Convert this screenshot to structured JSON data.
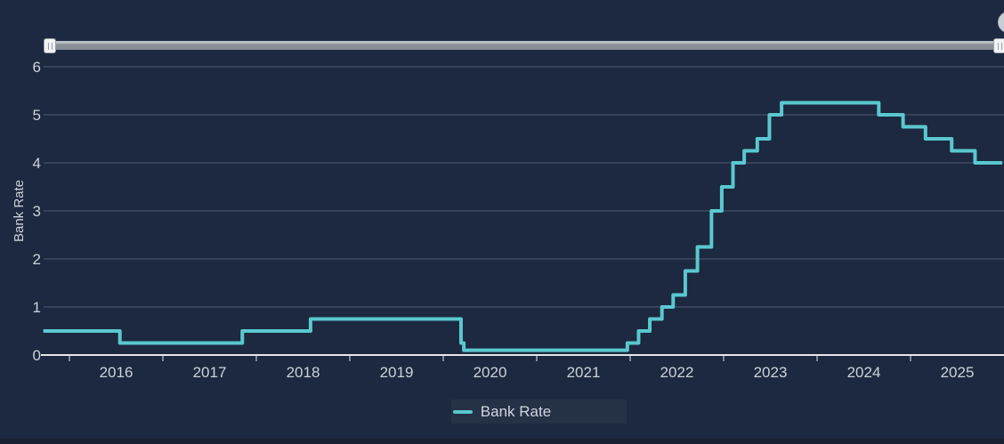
{
  "chart": {
    "background_color": "#1c2940",
    "accent_color": "#5ac8ce",
    "grid_color": "#505b6e",
    "y_axis": {
      "title": "Bank Rate"
    },
    "legend": {
      "label": "Bank Rate"
    },
    "navigator": {
      "range_start_handle": "min",
      "range_end_handle": "max"
    }
  },
  "chart_data": {
    "type": "line",
    "step": "after",
    "series": [
      {
        "name": "Bank Rate",
        "color": "#5ac8ce",
        "points": [
          {
            "year": 2015.72,
            "rate": 0.5
          },
          {
            "year": 2016.54,
            "rate": 0.25
          },
          {
            "year": 2017.85,
            "rate": 0.5
          },
          {
            "year": 2018.58,
            "rate": 0.75
          },
          {
            "year": 2020.19,
            "rate": 0.25
          },
          {
            "year": 2020.22,
            "rate": 0.1
          },
          {
            "year": 2021.97,
            "rate": 0.25
          },
          {
            "year": 2022.09,
            "rate": 0.5
          },
          {
            "year": 2022.21,
            "rate": 0.75
          },
          {
            "year": 2022.34,
            "rate": 1.0
          },
          {
            "year": 2022.46,
            "rate": 1.25
          },
          {
            "year": 2022.59,
            "rate": 1.75
          },
          {
            "year": 2022.72,
            "rate": 2.25
          },
          {
            "year": 2022.87,
            "rate": 3.0
          },
          {
            "year": 2022.98,
            "rate": 3.5
          },
          {
            "year": 2023.1,
            "rate": 4.0
          },
          {
            "year": 2023.22,
            "rate": 4.25
          },
          {
            "year": 2023.36,
            "rate": 4.5
          },
          {
            "year": 2023.49,
            "rate": 5.0
          },
          {
            "year": 2023.62,
            "rate": 5.25
          },
          {
            "year": 2024.66,
            "rate": 5.0
          },
          {
            "year": 2024.92,
            "rate": 4.75
          },
          {
            "year": 2025.16,
            "rate": 4.5
          },
          {
            "year": 2025.44,
            "rate": 4.25
          },
          {
            "year": 2025.69,
            "rate": 4.0
          }
        ]
      }
    ],
    "xticks": [
      2016,
      2017,
      2018,
      2019,
      2020,
      2021,
      2022,
      2023,
      2024,
      2025
    ],
    "yticks": [
      0,
      1,
      2,
      3,
      4,
      5,
      6
    ],
    "xlim": [
      2015.72,
      2025.98
    ],
    "ylim": [
      0,
      6
    ],
    "ylabel": "Bank Rate",
    "title": "",
    "grid": true,
    "legend_position": "bottom-center"
  }
}
